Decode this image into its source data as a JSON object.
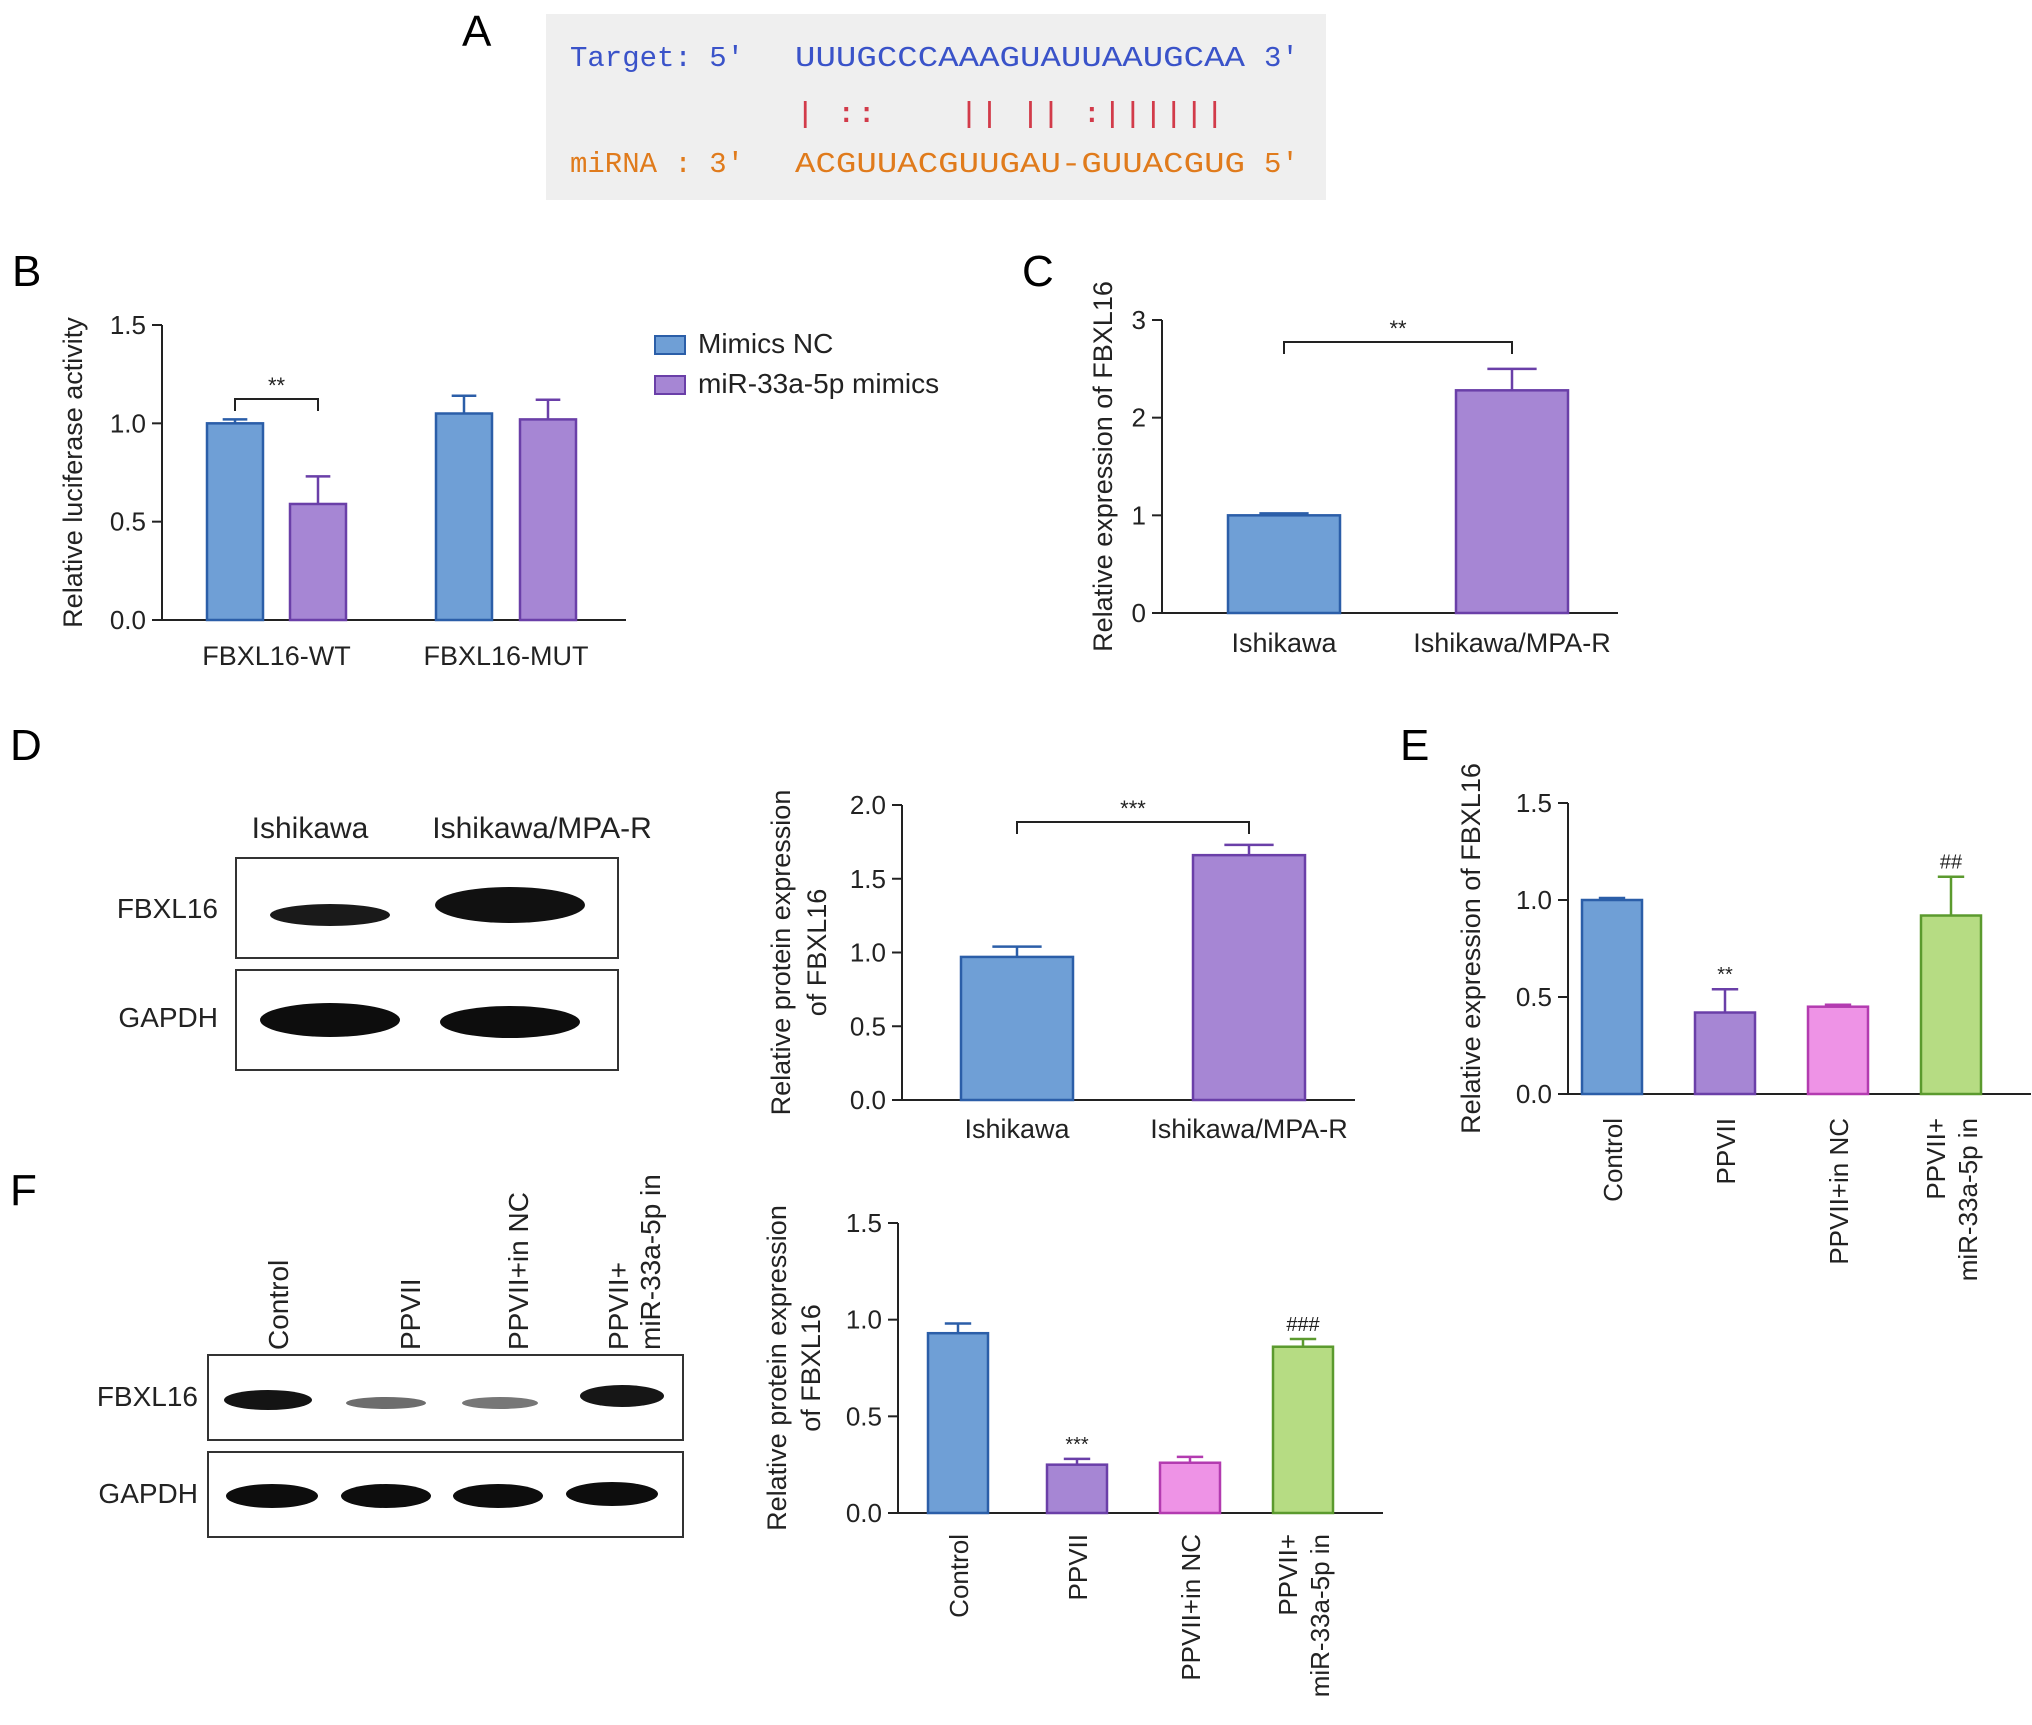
{
  "panel_letters": {
    "a": "A",
    "b": "B",
    "c": "C",
    "d": "D",
    "e": "E",
    "f": "F"
  },
  "sequence": {
    "target_label": "Target: 5'",
    "target_seq": "UUUGCCCAAAGUAUUAAUGCAA",
    "target_end": "3'",
    "match_line": "| ::    || || :||||||",
    "mirna_label": "miRNA : 3'",
    "mirna_seq": "ACGUUACGUUGAU-GUUACGUG",
    "mirna_end": "5'",
    "colors": {
      "target": "#3a53c9",
      "mirna": "#e07b1c",
      "match": "#d23b4a",
      "box": "#efefef"
    }
  },
  "colors": {
    "blue": "#6f9fd6",
    "purple": "#a686d4",
    "pink": "#ee93e6",
    "green": "#b6dc83",
    "blue_edge": "#2b5ea8",
    "purple_edge": "#6a3fa8",
    "pink_edge": "#b33bb0",
    "green_edge": "#5b9a2e"
  },
  "blots": {
    "D": {
      "columns": [
        "Ishikawa",
        "Ishikawa/MPA-R"
      ],
      "rows": [
        "FBXL16",
        "GAPDH"
      ]
    },
    "F": {
      "columns": [
        "Control",
        "PPVII",
        "PPVII+in NC",
        "PPVII+ miR-33a-5p in"
      ],
      "rows": [
        "FBXL16",
        "GAPDH"
      ]
    }
  },
  "chart_data": [
    {
      "panel": "B",
      "type": "bar",
      "ylabel": "Relative luciferase activity",
      "ylim": [
        0,
        1.5
      ],
      "yticks": [
        "0.0",
        "0.5",
        "1.0",
        "1.5"
      ],
      "categories": [
        "FBXL16-WT",
        "FBXL16-MUT"
      ],
      "series": [
        {
          "name": "Mimics NC",
          "values": [
            1.0,
            1.05
          ],
          "errors": [
            0.02,
            0.09
          ]
        },
        {
          "name": "miR-33a-5p mimics",
          "values": [
            0.59,
            1.02
          ],
          "errors": [
            0.14,
            0.1
          ]
        }
      ],
      "legend": "right",
      "annotations": [
        {
          "text": "**",
          "between": [
            0,
            1
          ],
          "category": 0
        }
      ]
    },
    {
      "panel": "C",
      "type": "bar",
      "ylabel": "Relative expression of FBXL16",
      "ylim": [
        0,
        3
      ],
      "yticks": [
        "0",
        "1",
        "2",
        "3"
      ],
      "categories": [
        "Ishikawa",
        "Ishikawa/MPA-R"
      ],
      "values": [
        1.0,
        2.28
      ],
      "errors": [
        0.02,
        0.22
      ],
      "annotations": [
        {
          "text": "**",
          "between": [
            0,
            1
          ]
        }
      ]
    },
    {
      "panel": "D",
      "type": "bar",
      "ylabel": "Relative protein expression of FBXL16",
      "ylim": [
        0,
        2.0
      ],
      "yticks": [
        "0.0",
        "0.5",
        "1.0",
        "1.5",
        "2.0"
      ],
      "categories": [
        "Ishikawa",
        "Ishikawa/MPA-R"
      ],
      "values": [
        0.97,
        1.66
      ],
      "errors": [
        0.07,
        0.07
      ],
      "annotations": [
        {
          "text": "***",
          "between": [
            0,
            1
          ]
        }
      ]
    },
    {
      "panel": "E",
      "type": "bar",
      "ylabel": "Relative expression of FBXL16",
      "ylim": [
        0,
        1.5
      ],
      "yticks": [
        "0.0",
        "0.5",
        "1.0",
        "1.5"
      ],
      "categories": [
        "Control",
        "PPVII",
        "PPVII+in NC",
        "PPVII+ miR-33a-5p in"
      ],
      "values": [
        1.0,
        0.42,
        0.45,
        0.92
      ],
      "errors": [
        0.01,
        0.12,
        0.01,
        0.2
      ],
      "annotations": [
        {
          "text": "**",
          "category": 1
        },
        {
          "text": "##",
          "category": 3
        }
      ]
    },
    {
      "panel": "F",
      "type": "bar",
      "ylabel": "Relative protein expression of FBXL16",
      "ylim": [
        0,
        1.5
      ],
      "yticks": [
        "0.0",
        "0.5",
        "1.0",
        "1.5"
      ],
      "categories": [
        "Control",
        "PPVII",
        "PPVII+in NC",
        "PPVII+ miR-33a-5p in"
      ],
      "values": [
        0.93,
        0.25,
        0.26,
        0.86
      ],
      "errors": [
        0.05,
        0.03,
        0.03,
        0.04
      ],
      "annotations": [
        {
          "text": "***",
          "category": 1
        },
        {
          "text": "###",
          "category": 3
        }
      ]
    }
  ]
}
